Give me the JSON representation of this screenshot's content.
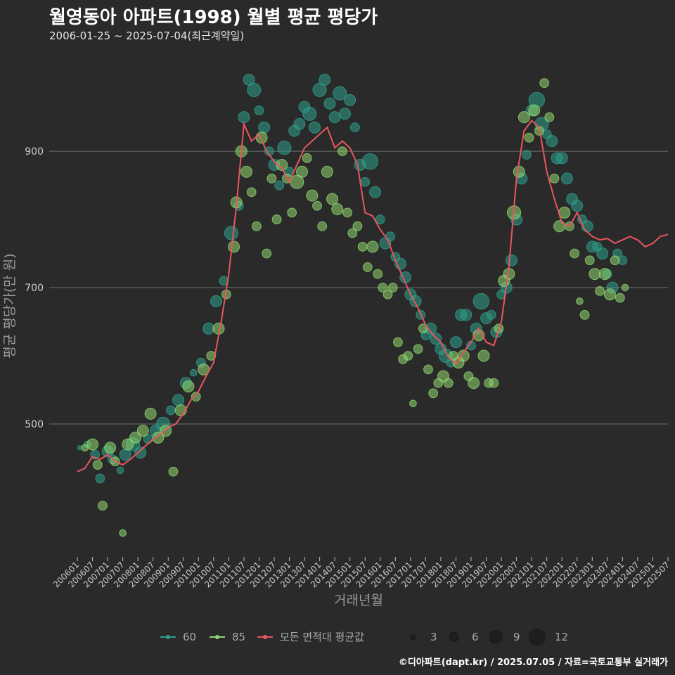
{
  "title": "월영동아 아파트(1998) 월별 평균 평당가",
  "subtitle": "2006-01-25 ~ 2025-07-04(최근계약일)",
  "credit": "©디아파트(dapt.kr) / 2025.07.05 / 자료=국토교통부 실거래가",
  "colors": {
    "bg": "#2a2a2a",
    "grid": "#6e6e6e",
    "s60": "#2e9e8a",
    "s85": "#8fd66e",
    "avg": "#e8565f"
  },
  "chart_data": {
    "type": "scatter",
    "title": "월영동아 아파트(1998) 월별 평균 평당가",
    "xlabel": "거래년월",
    "ylabel": "평균 평당가(만 원)",
    "xlim": [
      0,
      234
    ],
    "ylim": [
      305,
      1060
    ],
    "yticks": [
      500,
      700,
      900
    ],
    "xtick_labels": [
      "200601",
      "200607",
      "200701",
      "200707",
      "200801",
      "200807",
      "200901",
      "200907",
      "201001",
      "201007",
      "201101",
      "201107",
      "201201",
      "201207",
      "201301",
      "201307",
      "201401",
      "201407",
      "201501",
      "201507",
      "201601",
      "201607",
      "201701",
      "201707",
      "201801",
      "201807",
      "201901",
      "201907",
      "202001",
      "202007",
      "202101",
      "202107",
      "202201",
      "202207",
      "202301",
      "202307",
      "202401",
      "202407",
      "202501",
      "202507"
    ],
    "legend": {
      "series": [
        {
          "key": "s60",
          "label": "60"
        },
        {
          "key": "s85",
          "label": "85"
        },
        {
          "key": "avg",
          "label": "모든 면적대 평균값"
        }
      ],
      "sizes": [
        3,
        6,
        9,
        12
      ]
    },
    "average_line": {
      "name": "모든 면적대 평균값",
      "x": [
        0,
        3,
        6,
        9,
        12,
        15,
        18,
        21,
        24,
        27,
        30,
        33,
        36,
        39,
        42,
        45,
        48,
        51,
        54,
        57,
        60,
        63,
        66,
        69,
        72,
        75,
        78,
        81,
        84,
        87,
        90,
        93,
        96,
        99,
        102,
        105,
        108,
        111,
        114,
        117,
        120,
        123,
        126,
        129,
        132,
        135,
        138,
        141,
        144,
        147,
        150,
        153,
        156,
        159,
        162,
        165,
        168,
        171,
        174,
        177,
        180,
        183,
        186,
        189,
        192,
        195,
        198,
        201,
        204,
        207,
        210,
        213,
        216,
        219,
        222,
        225,
        228,
        231,
        234
      ],
      "y": [
        430,
        435,
        452,
        448,
        455,
        445,
        440,
        448,
        458,
        468,
        477,
        485,
        495,
        500,
        515,
        535,
        548,
        570,
        590,
        650,
        720,
        820,
        940,
        915,
        925,
        900,
        885,
        875,
        855,
        880,
        905,
        915,
        925,
        935,
        905,
        915,
        905,
        880,
        810,
        805,
        785,
        770,
        740,
        715,
        690,
        670,
        645,
        630,
        620,
        598,
        588,
        605,
        620,
        640,
        620,
        615,
        650,
        730,
        860,
        930,
        945,
        935,
        870,
        830,
        795,
        790,
        810,
        785,
        775,
        770,
        772,
        765,
        770,
        775,
        770,
        760,
        765,
        775,
        778
      ]
    },
    "series": [
      {
        "name": "60",
        "points": [
          [
            1,
            465,
            2
          ],
          [
            4,
            470,
            3
          ],
          [
            7,
            455,
            4
          ],
          [
            9,
            420,
            4
          ],
          [
            12,
            460,
            5
          ],
          [
            14,
            448,
            4
          ],
          [
            17,
            432,
            3
          ],
          [
            19,
            455,
            5
          ],
          [
            22,
            470,
            6
          ],
          [
            25,
            458,
            5
          ],
          [
            28,
            478,
            4
          ],
          [
            31,
            490,
            5
          ],
          [
            34,
            500,
            6
          ],
          [
            37,
            520,
            4
          ],
          [
            40,
            535,
            5
          ],
          [
            43,
            560,
            5
          ],
          [
            46,
            575,
            3
          ],
          [
            49,
            590,
            4
          ],
          [
            52,
            640,
            5
          ],
          [
            55,
            680,
            5
          ],
          [
            58,
            710,
            4
          ],
          [
            61,
            780,
            6
          ],
          [
            64,
            820,
            4
          ],
          [
            66,
            950,
            5
          ],
          [
            68,
            1005,
            5
          ],
          [
            70,
            990,
            6
          ],
          [
            72,
            960,
            4
          ],
          [
            74,
            935,
            5
          ],
          [
            76,
            900,
            4
          ],
          [
            78,
            880,
            5
          ],
          [
            80,
            850,
            4
          ],
          [
            82,
            905,
            6
          ],
          [
            84,
            870,
            4
          ],
          [
            86,
            930,
            5
          ],
          [
            88,
            940,
            5
          ],
          [
            90,
            965,
            5
          ],
          [
            92,
            955,
            6
          ],
          [
            94,
            935,
            5
          ],
          [
            96,
            990,
            6
          ],
          [
            98,
            1005,
            5
          ],
          [
            100,
            970,
            5
          ],
          [
            102,
            950,
            5
          ],
          [
            104,
            985,
            6
          ],
          [
            106,
            955,
            5
          ],
          [
            108,
            975,
            5
          ],
          [
            110,
            935,
            4
          ],
          [
            112,
            880,
            5
          ],
          [
            114,
            855,
            4
          ],
          [
            116,
            885,
            7
          ],
          [
            118,
            840,
            5
          ],
          [
            120,
            800,
            4
          ],
          [
            122,
            765,
            5
          ],
          [
            124,
            775,
            4
          ],
          [
            126,
            745,
            4
          ],
          [
            128,
            735,
            5
          ],
          [
            130,
            715,
            5
          ],
          [
            132,
            690,
            5
          ],
          [
            134,
            680,
            5
          ],
          [
            136,
            660,
            4
          ],
          [
            138,
            630,
            4
          ],
          [
            140,
            640,
            5
          ],
          [
            142,
            625,
            5
          ],
          [
            144,
            610,
            5
          ],
          [
            146,
            600,
            6
          ],
          [
            148,
            590,
            4
          ],
          [
            150,
            620,
            5
          ],
          [
            152,
            660,
            5
          ],
          [
            154,
            660,
            5
          ],
          [
            156,
            615,
            4
          ],
          [
            158,
            640,
            5
          ],
          [
            160,
            680,
            7
          ],
          [
            162,
            655,
            5
          ],
          [
            164,
            660,
            4
          ],
          [
            166,
            635,
            5
          ],
          [
            168,
            690,
            4
          ],
          [
            170,
            700,
            5
          ],
          [
            172,
            740,
            5
          ],
          [
            174,
            800,
            5
          ],
          [
            176,
            860,
            5
          ],
          [
            178,
            895,
            4
          ],
          [
            180,
            960,
            5
          ],
          [
            182,
            975,
            7
          ],
          [
            184,
            940,
            6
          ],
          [
            186,
            925,
            4
          ],
          [
            188,
            915,
            5
          ],
          [
            190,
            890,
            5
          ],
          [
            192,
            890,
            5
          ],
          [
            194,
            860,
            5
          ],
          [
            196,
            830,
            5
          ],
          [
            198,
            820,
            5
          ],
          [
            200,
            800,
            4
          ],
          [
            202,
            790,
            5
          ],
          [
            204,
            760,
            5
          ],
          [
            206,
            760,
            4
          ],
          [
            208,
            750,
            5
          ],
          [
            210,
            720,
            4
          ],
          [
            212,
            700,
            5
          ],
          [
            214,
            750,
            4
          ],
          [
            216,
            740,
            4
          ]
        ]
      },
      {
        "name": "85",
        "points": [
          [
            3,
            465,
            3
          ],
          [
            6,
            470,
            5
          ],
          [
            8,
            440,
            4
          ],
          [
            10,
            380,
            4
          ],
          [
            13,
            465,
            5
          ],
          [
            15,
            445,
            4
          ],
          [
            18,
            340,
            3
          ],
          [
            20,
            470,
            5
          ],
          [
            23,
            480,
            5
          ],
          [
            26,
            490,
            5
          ],
          [
            29,
            515,
            5
          ],
          [
            32,
            480,
            5
          ],
          [
            35,
            490,
            5
          ],
          [
            38,
            430,
            4
          ],
          [
            41,
            520,
            5
          ],
          [
            44,
            555,
            5
          ],
          [
            47,
            540,
            4
          ],
          [
            50,
            580,
            5
          ],
          [
            53,
            600,
            4
          ],
          [
            56,
            640,
            5
          ],
          [
            59,
            690,
            4
          ],
          [
            62,
            760,
            5
          ],
          [
            63,
            825,
            5
          ],
          [
            65,
            900,
            5
          ],
          [
            67,
            870,
            5
          ],
          [
            69,
            840,
            4
          ],
          [
            71,
            790,
            4
          ],
          [
            73,
            920,
            5
          ],
          [
            75,
            750,
            4
          ],
          [
            77,
            860,
            4
          ],
          [
            79,
            800,
            4
          ],
          [
            81,
            880,
            5
          ],
          [
            83,
            860,
            4
          ],
          [
            85,
            810,
            4
          ],
          [
            87,
            855,
            6
          ],
          [
            89,
            870,
            5
          ],
          [
            91,
            890,
            4
          ],
          [
            93,
            835,
            5
          ],
          [
            95,
            820,
            4
          ],
          [
            97,
            790,
            4
          ],
          [
            99,
            870,
            5
          ],
          [
            101,
            830,
            5
          ],
          [
            103,
            815,
            5
          ],
          [
            105,
            900,
            4
          ],
          [
            107,
            810,
            4
          ],
          [
            109,
            780,
            4
          ],
          [
            111,
            790,
            4
          ],
          [
            113,
            760,
            4
          ],
          [
            115,
            730,
            4
          ],
          [
            117,
            760,
            5
          ],
          [
            119,
            720,
            4
          ],
          [
            121,
            700,
            4
          ],
          [
            123,
            690,
            4
          ],
          [
            125,
            700,
            4
          ],
          [
            127,
            620,
            4
          ],
          [
            129,
            595,
            4
          ],
          [
            131,
            600,
            4
          ],
          [
            133,
            530,
            3
          ],
          [
            135,
            610,
            4
          ],
          [
            137,
            640,
            4
          ],
          [
            139,
            580,
            4
          ],
          [
            141,
            545,
            4
          ],
          [
            143,
            560,
            4
          ],
          [
            145,
            570,
            5
          ],
          [
            147,
            560,
            4
          ],
          [
            149,
            600,
            4
          ],
          [
            151,
            590,
            5
          ],
          [
            153,
            600,
            5
          ],
          [
            155,
            570,
            4
          ],
          [
            157,
            560,
            5
          ],
          [
            159,
            630,
            5
          ],
          [
            161,
            600,
            5
          ],
          [
            163,
            560,
            4
          ],
          [
            165,
            560,
            4
          ],
          [
            167,
            640,
            4
          ],
          [
            169,
            710,
            5
          ],
          [
            171,
            720,
            5
          ],
          [
            173,
            810,
            6
          ],
          [
            175,
            870,
            5
          ],
          [
            177,
            950,
            5
          ],
          [
            179,
            920,
            4
          ],
          [
            181,
            960,
            5
          ],
          [
            183,
            930,
            4
          ],
          [
            185,
            1000,
            4
          ],
          [
            187,
            950,
            4
          ],
          [
            189,
            860,
            4
          ],
          [
            191,
            790,
            5
          ],
          [
            193,
            810,
            5
          ],
          [
            195,
            790,
            4
          ],
          [
            197,
            750,
            4
          ],
          [
            199,
            680,
            3
          ],
          [
            201,
            660,
            4
          ],
          [
            203,
            740,
            4
          ],
          [
            205,
            720,
            5
          ],
          [
            207,
            695,
            4
          ],
          [
            209,
            720,
            5
          ],
          [
            211,
            690,
            5
          ],
          [
            213,
            740,
            4
          ],
          [
            215,
            685,
            4
          ],
          [
            217,
            700,
            3
          ]
        ]
      }
    ]
  }
}
